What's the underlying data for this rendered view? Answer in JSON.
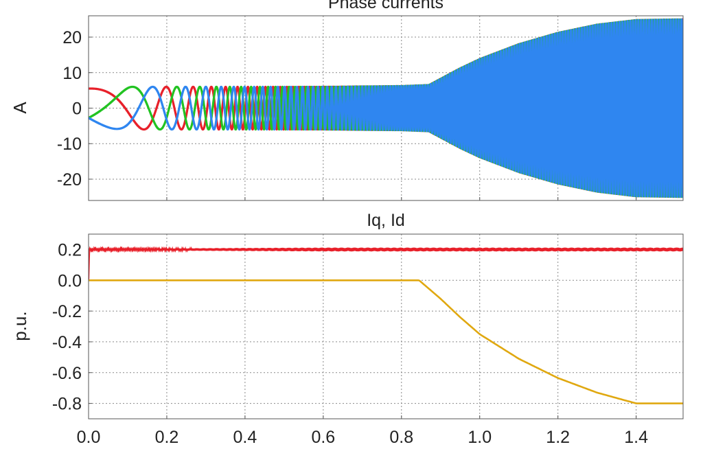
{
  "chart_data": [
    {
      "type": "line",
      "title": "Phase currents",
      "xlabel": "",
      "ylabel": "A",
      "xlim": [
        0.0,
        1.52
      ],
      "ylim": [
        -26,
        26
      ],
      "xticks": [
        0.0,
        0.2,
        0.4,
        0.6,
        0.8,
        1.0,
        1.2,
        1.4
      ],
      "yticks": [
        20,
        10,
        0,
        -10,
        -20
      ],
      "ytick_labels": [
        "20",
        "10",
        "0",
        "-10",
        "-20"
      ],
      "grid": true,
      "envelope": {
        "x": [
          0.0,
          0.1,
          0.2,
          0.4,
          0.6,
          0.8,
          0.87,
          0.95,
          1.0,
          1.1,
          1.2,
          1.3,
          1.4,
          1.52
        ],
        "amplitude": [
          5.5,
          6.0,
          6.0,
          6.0,
          6.0,
          6.2,
          6.5,
          11.2,
          13.8,
          18.0,
          21.2,
          23.5,
          24.8,
          25.0
        ]
      },
      "series": [
        {
          "color": "#e8202a",
          "phase_deg": 90
        },
        {
          "color": "#22c322",
          "phase_deg": -30
        },
        {
          "color": "#2f86f0",
          "phase_deg": 210
        }
      ]
    },
    {
      "type": "line",
      "title": "Iq, Id",
      "xlabel": "",
      "ylabel": "p.u.",
      "xlim": [
        0.0,
        1.52
      ],
      "ylim": [
        -0.9,
        0.3
      ],
      "xticks": [
        0.0,
        0.2,
        0.4,
        0.6,
        0.8,
        1.0,
        1.2,
        1.4
      ],
      "xtick_labels": [
        "0.0",
        "0.2",
        "0.4",
        "0.6",
        "0.8",
        "1.0",
        "1.2",
        "1.4"
      ],
      "yticks": [
        0.2,
        0.0,
        -0.2,
        -0.4,
        -0.6,
        -0.8
      ],
      "ytick_labels": [
        "0.2",
        "0.0",
        "-0.2",
        "-0.4",
        "-0.6",
        "-0.8"
      ],
      "grid": true,
      "series": [
        {
          "color": "#e8202a",
          "x": [
            0.0,
            0.002,
            0.2,
            0.6,
            1.0,
            1.4,
            1.52
          ],
          "values": [
            0.0,
            0.2,
            0.2,
            0.2,
            0.2,
            0.2,
            0.2
          ],
          "noise_band": 0.01
        },
        {
          "color": "#e0a810",
          "x": [
            0.0,
            0.2,
            0.4,
            0.6,
            0.8,
            0.845,
            0.9,
            0.95,
            1.0,
            1.1,
            1.2,
            1.3,
            1.4,
            1.52
          ],
          "values": [
            0.0,
            0.0,
            0.0,
            0.0,
            0.0,
            0.0,
            -0.12,
            -0.24,
            -0.35,
            -0.51,
            -0.635,
            -0.73,
            -0.8,
            -0.8
          ]
        }
      ]
    }
  ]
}
